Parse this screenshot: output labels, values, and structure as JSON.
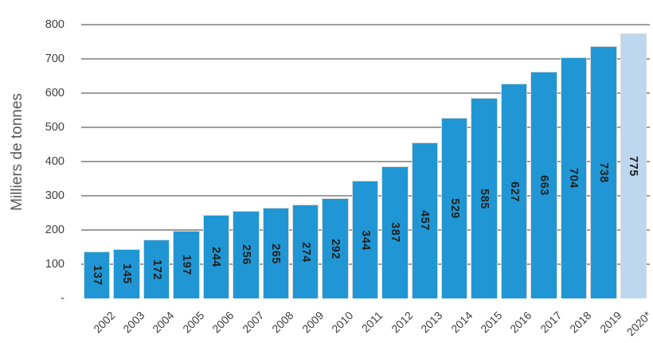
{
  "chart_data": {
    "type": "bar",
    "title": "",
    "ylabel": "Milliers de tonnes",
    "xlabel": "",
    "categories": [
      "2002",
      "2003",
      "2004",
      "2005",
      "2006",
      "2007",
      "2008",
      "2009",
      "2010",
      "2011",
      "2012",
      "2013",
      "2014",
      "2015",
      "2016",
      "2017",
      "2018",
      "2019",
      "2020*"
    ],
    "values": [
      137,
      145,
      172,
      197,
      244,
      256,
      265,
      274,
      292,
      344,
      387,
      457,
      529,
      585,
      627,
      663,
      704,
      738,
      775
    ],
    "data_labels": [
      "137",
      "145",
      "172",
      "197",
      "244",
      "256",
      "265",
      "274",
      "292",
      "344",
      "387",
      "457",
      "529",
      "585",
      "627",
      "663",
      "704",
      "738",
      "775"
    ],
    "ylim": [
      0,
      800
    ],
    "ytick_values": [
      0,
      100,
      200,
      300,
      400,
      500,
      600,
      700,
      800
    ],
    "ytick_labels": [
      "-",
      "100",
      "200",
      "300",
      "400",
      "500",
      "600",
      "700",
      "800"
    ],
    "grid": true,
    "legend": false,
    "bar_color": "#2097D4",
    "highlight_last_bar": true,
    "last_bar_color": "#BDD7EE",
    "gridline_color": "#9d9d9d",
    "axis_text_color": "#404040",
    "value_label_color": "#1f1f1f",
    "y_title_color": "#595959"
  }
}
